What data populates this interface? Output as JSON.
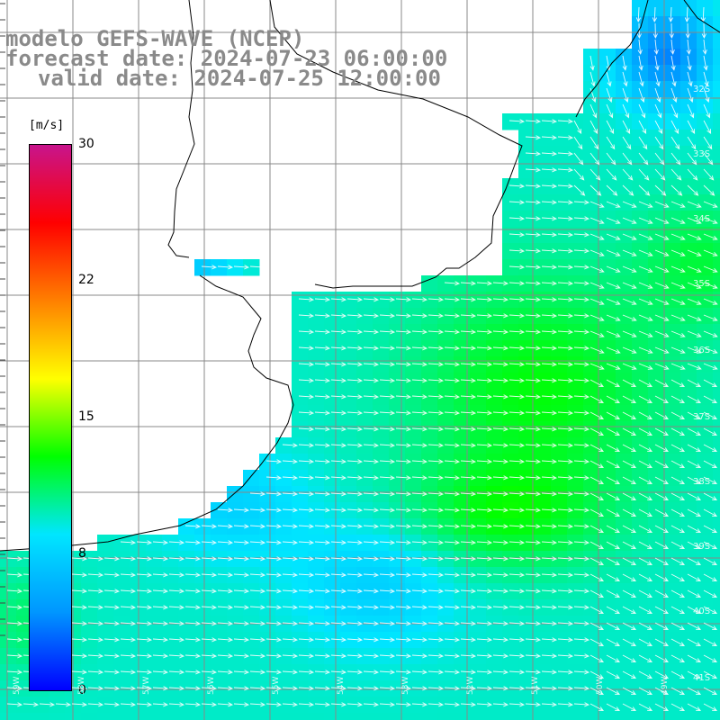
{
  "title": {
    "line1": "modelo GEFS-WAVE (NCEP)",
    "line2": "forecast date: 2024-07-23 06:00:00",
    "line3": "valid date: 2024-07-25 12:00:00"
  },
  "colorbar": {
    "unit": "[m/s]",
    "ticks": [
      "30",
      "22",
      "15",
      "8",
      "0"
    ],
    "tick_values": [
      30,
      22,
      15,
      8,
      0
    ],
    "range": [
      0,
      30
    ],
    "colors": [
      "#0000ff",
      "#0096ff",
      "#00e6ff",
      "#00ff00",
      "#ffff00",
      "#ff8000",
      "#ff0000",
      "#c8148c"
    ]
  },
  "map": {
    "variable": "wind speed and direction",
    "land_color": "#ffffff",
    "grid_color": "#888888",
    "arrow_color": "#ffffff",
    "latitude_labels": [
      "32S",
      "33S",
      "34S",
      "35S",
      "36S",
      "37S",
      "38S",
      "39S",
      "40S",
      "41S"
    ],
    "longitude_labels": [
      "59W",
      "58W",
      "57W",
      "56W",
      "55W",
      "54W",
      "53W",
      "52W",
      "51W",
      "50W",
      "49W"
    ]
  }
}
